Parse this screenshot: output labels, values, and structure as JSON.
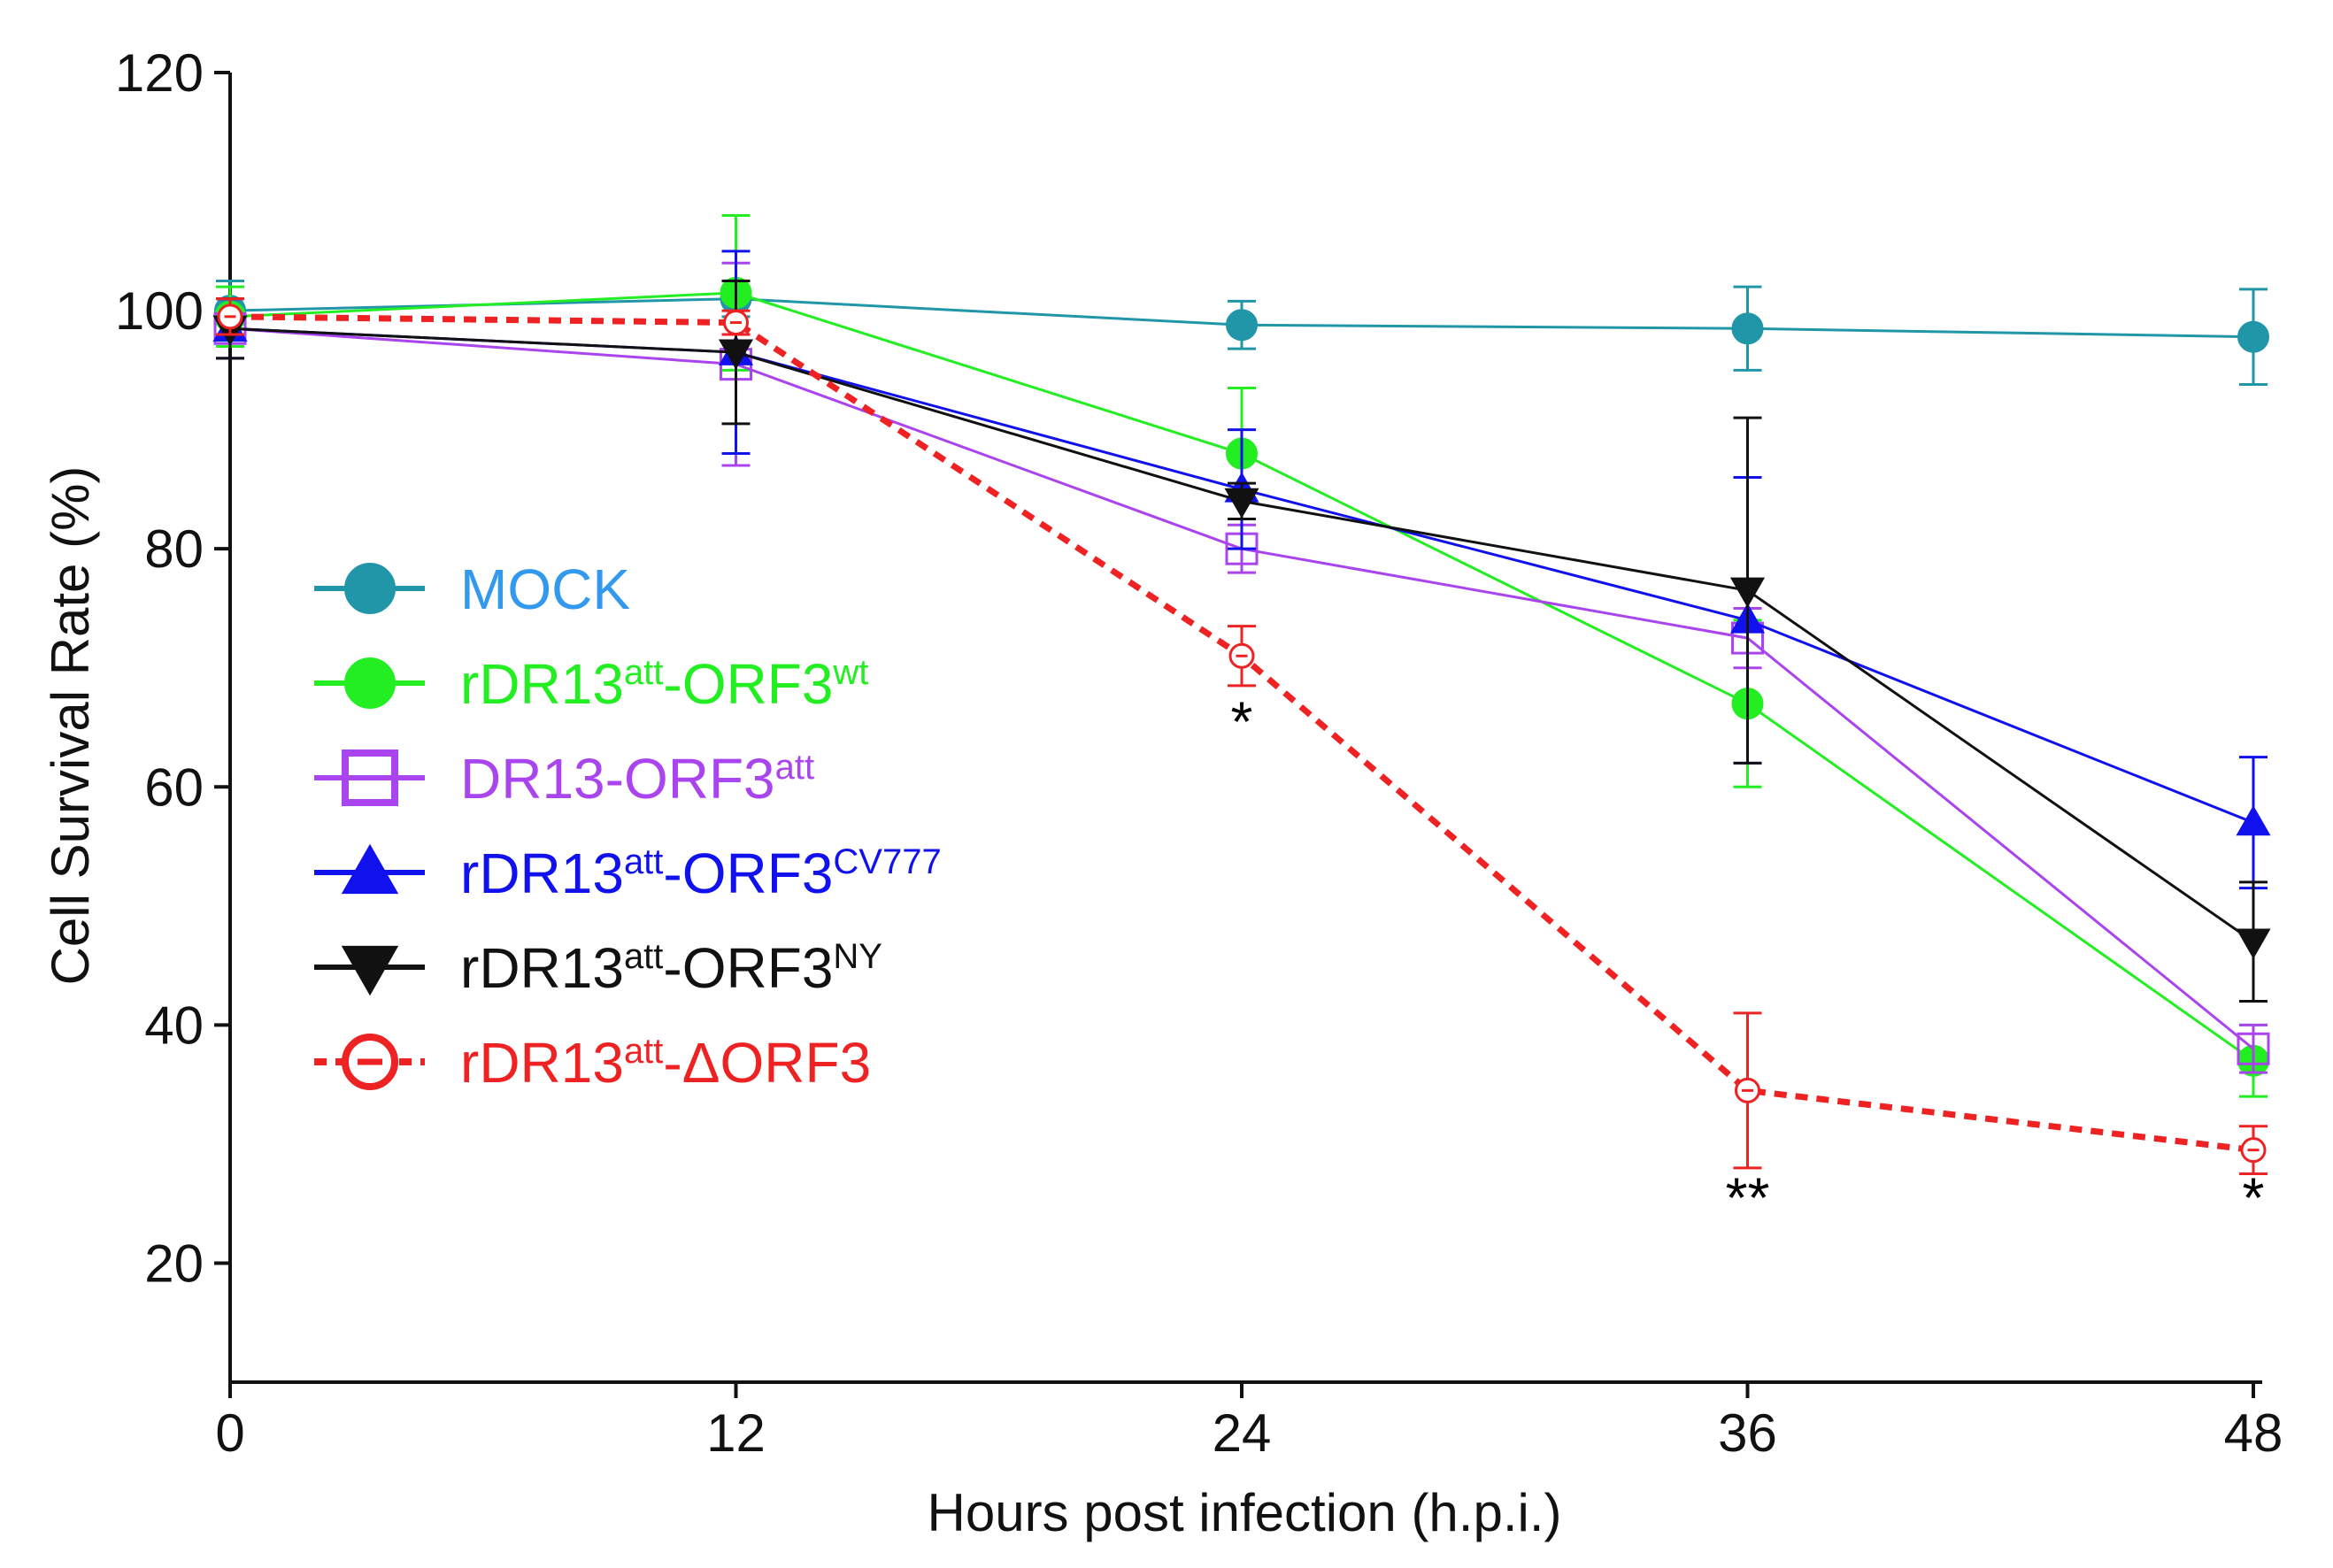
{
  "chart_data": {
    "type": "line",
    "title": "",
    "xlabel": "Hours post infection (h.p.i.)",
    "ylabel": "Cell Survival Rate (%)",
    "x": [
      0,
      12,
      24,
      36,
      48
    ],
    "xlim": [
      0,
      48
    ],
    "ylim": [
      10,
      120
    ],
    "xticks": [
      "0",
      "12",
      "24",
      "36",
      "48"
    ],
    "yticks": [
      "20",
      "40",
      "60",
      "80",
      "100",
      "120"
    ],
    "grid": false,
    "legend_position": "left-center",
    "series": [
      {
        "name": "MOCK",
        "label_base": "MOCK",
        "label_sup": "",
        "label_tail": "",
        "label_tail_sup": "",
        "color": "#2196a8",
        "label_color": "#3399ee",
        "marker": "filled-circle",
        "dashed": false,
        "values": [
          100,
          101,
          98.8,
          98.5,
          97.8
        ],
        "errors": [
          2.5,
          1.5,
          2,
          3.5,
          4
        ]
      },
      {
        "name": "rDR13att-ORF3wt",
        "label_base": "rDR13",
        "label_sup": "att",
        "label_tail": "-ORF3",
        "label_tail_sup": "wt",
        "color": "#22ee22",
        "label_color": "#22ee22",
        "marker": "filled-circle",
        "dashed": false,
        "values": [
          99.5,
          101.5,
          88,
          67,
          37
        ],
        "errors": [
          2.5,
          6.5,
          5.5,
          7,
          3
        ]
      },
      {
        "name": "DR13-ORF3att",
        "label_base": "DR13-ORF3",
        "label_sup": "att",
        "label_tail": "",
        "label_tail_sup": "",
        "color": "#aa44ee",
        "label_color": "#aa44ee",
        "marker": "open-square",
        "dashed": false,
        "values": [
          98.5,
          95.5,
          80,
          72.5,
          38
        ],
        "errors": [
          2.5,
          8.5,
          2,
          2.5,
          2
        ]
      },
      {
        "name": "rDR13att-ORF3CV777",
        "label_base": "rDR13",
        "label_sup": "att",
        "label_tail": "-ORF3",
        "label_tail_sup": "CV777",
        "color": "#1111ee",
        "label_color": "#1111ee",
        "marker": "filled-triangle-up",
        "dashed": false,
        "values": [
          98.5,
          96.5,
          85,
          74,
          57
        ],
        "errors": [
          2.5,
          8.5,
          5,
          12,
          5.5
        ]
      },
      {
        "name": "rDR13att-ORF3NY",
        "label_base": "rDR13",
        "label_sup": "att",
        "label_tail": "-ORF3",
        "label_tail_sup": "NY",
        "color": "#111111",
        "label_color": "#111111",
        "marker": "filled-triangle-down",
        "dashed": false,
        "values": [
          98.5,
          96.5,
          84,
          76.5,
          47
        ],
        "errors": [
          2.5,
          6,
          1.5,
          14.5,
          5
        ]
      },
      {
        "name": "rDR13att-ΔORF3",
        "label_base": "rDR13",
        "label_sup": "att",
        "label_tail": "-ΔORF3",
        "label_tail_sup": "",
        "color": "#ee2222",
        "label_color": "#ee2222",
        "marker": "open-circle-dash",
        "dashed": true,
        "values": [
          99.5,
          99,
          71,
          34.5,
          29.5
        ],
        "errors": [
          1.5,
          1,
          2.5,
          6.5,
          2
        ]
      }
    ],
    "annotations": [
      {
        "x": 24,
        "y": 65.5,
        "text": "*"
      },
      {
        "x": 36,
        "y": 25.5,
        "text": "**"
      },
      {
        "x": 48,
        "y": 25.5,
        "text": "*"
      }
    ]
  }
}
